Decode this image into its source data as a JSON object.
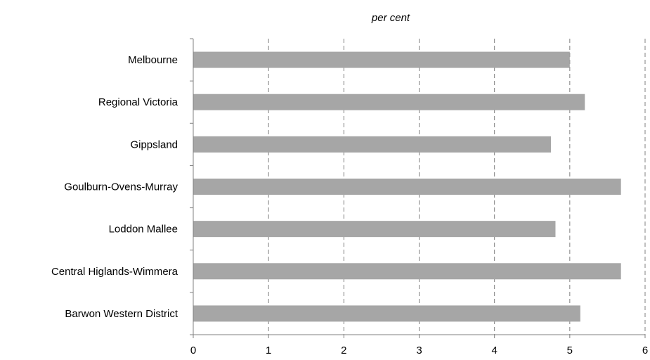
{
  "chart_data": {
    "type": "bar",
    "orientation": "horizontal",
    "title": "per cent",
    "categories": [
      "Melbourne",
      "Regional Victoria",
      "Gippsland",
      "Goulburn-Ovens-Murray",
      "Loddon Mallee",
      "Central Higlands-Wimmera",
      "Barwon Western District"
    ],
    "values": [
      5.0,
      5.2,
      4.75,
      5.68,
      4.81,
      5.68,
      5.14
    ],
    "xlim": [
      0,
      6
    ],
    "xticks": [
      "0",
      "1",
      "2",
      "3",
      "4",
      "5",
      "6"
    ],
    "grid": "vertical-dashed",
    "bar_color": "#a6a6a6"
  }
}
